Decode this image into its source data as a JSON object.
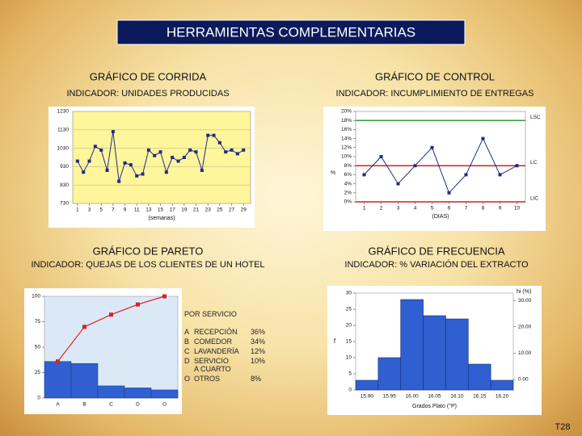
{
  "title": "HERRAMIENTAS COMPLEMENTARIAS",
  "slide_number": "T28",
  "chart_data": [
    {
      "type": "line",
      "title": "GRÁFICO DE CORRIDA",
      "subtitle": "INDICADOR: UNIDADES PRODUCIDAS",
      "x_label": "(semanas)",
      "x": [
        1,
        2,
        3,
        4,
        5,
        6,
        7,
        8,
        9,
        10,
        11,
        12,
        13,
        14,
        15,
        16,
        17,
        18,
        19,
        20,
        21,
        22,
        23,
        24,
        25,
        26,
        27,
        28,
        29
      ],
      "values": [
        960,
        900,
        960,
        1040,
        1020,
        910,
        1120,
        850,
        950,
        940,
        880,
        890,
        1020,
        990,
        1010,
        900,
        980,
        960,
        980,
        1020,
        1010,
        910,
        1100,
        1100,
        1060,
        1010,
        1020,
        1000,
        1020
      ],
      "xlim": [
        0.2,
        30.2
      ],
      "xticks": [
        1,
        3,
        5,
        7,
        9,
        11,
        13,
        15,
        17,
        19,
        21,
        23,
        25,
        27,
        29
      ],
      "ylim": [
        730,
        1230
      ],
      "yticks": [
        730,
        830,
        930,
        1030,
        1130,
        1230
      ],
      "color": "#1c2c8c",
      "plot_color": "#fff59a",
      "grid": true
    },
    {
      "type": "line",
      "title": "GRÁFICO DE CONTROL",
      "subtitle": "INDICADOR: INCUMPLIMIENTO DE ENTREGAS",
      "x_label": "(DIAS)",
      "y_label": "%",
      "x": [
        1,
        2,
        3,
        4,
        5,
        6,
        7,
        8,
        9,
        10
      ],
      "values": [
        6,
        10,
        4,
        8,
        12,
        2,
        6,
        14,
        6,
        8
      ],
      "xlim": [
        0.5,
        10.5
      ],
      "xticks": [
        1,
        2,
        3,
        4,
        5,
        6,
        7,
        8,
        9,
        10
      ],
      "ylim": [
        0,
        20
      ],
      "yticks": [
        {
          "value": 0,
          "label": "0%"
        },
        {
          "value": 2,
          "label": "2%"
        },
        {
          "value": 4,
          "label": "4%"
        },
        {
          "value": 6,
          "label": "6%"
        },
        {
          "value": 8,
          "label": "8%"
        },
        {
          "value": 10,
          "label": "10%"
        },
        {
          "value": 12,
          "label": "12%"
        },
        {
          "value": 14,
          "label": "14%"
        },
        {
          "value": 16,
          "label": "16%"
        },
        {
          "value": 18,
          "label": "18%"
        },
        {
          "value": 20,
          "label": "20%"
        }
      ],
      "color": "#1c2c8c",
      "plot_color": "#ffffff",
      "grid": false,
      "control_lines": [
        {
          "label": "LSC",
          "value": 18,
          "color": "#2e9e3a"
        },
        {
          "label": "LC",
          "value": 8,
          "color": "#d42020"
        },
        {
          "label": "LIC",
          "value": 0,
          "color": "#d42020"
        }
      ]
    },
    {
      "type": "pareto",
      "title": "GRÁFICO DE PARETO",
      "subtitle": "INDICADOR: QUEJAS DE LOS CLIENTES DE UN HOTEL",
      "categories": [
        "A",
        "B",
        "C",
        "D",
        "O"
      ],
      "values": [
        36,
        34,
        12,
        10,
        8
      ],
      "cumulative": [
        36,
        70,
        82,
        92,
        100
      ],
      "color": "#2f5fd0",
      "line_color": "#e02020",
      "plot_color": "#dbe9f7",
      "ylim": [
        0,
        100
      ],
      "yticks": [
        0,
        25,
        50,
        75,
        100
      ],
      "legend_title": "POR SERVICIO",
      "legend_rows": [
        {
          "key": "A",
          "name": "RECEPCIÓN",
          "share": "36%"
        },
        {
          "key": "B",
          "name": "COMEDOR",
          "share": "34%"
        },
        {
          "key": "C",
          "name": "LAVANDERÍA",
          "share": "12%"
        },
        {
          "key": "D",
          "name": "SERVICIO\nA CUARTO",
          "share": "10%"
        },
        {
          "key": "O",
          "name": "OTROS",
          "share": "8%"
        }
      ]
    },
    {
      "type": "bar",
      "title": "GRÁFICO DE FRECUENCIA",
      "subtitle": "INDICADOR: % VARIACIÓN DEL EXTRACTO",
      "x_label": "Grados Plato (°P)",
      "y_label": "f",
      "y2_label": "hi (%)",
      "categories": [
        "15.90",
        "15.95",
        "16.00",
        "16.05",
        "16.10",
        "16.15",
        "16.20"
      ],
      "values": [
        3,
        10,
        28,
        23,
        22,
        8,
        3
      ],
      "color": "#2f5fd0",
      "plot_color": "#ffffff",
      "ylim": [
        0,
        30
      ],
      "yticks": [
        0,
        5,
        10,
        15,
        20,
        25,
        30
      ],
      "y2lim": [
        -4,
        32.8
      ],
      "y2ticks": [
        {
          "value": 0,
          "label": "0.00"
        },
        {
          "value": 10,
          "label": "10.00"
        },
        {
          "value": 20,
          "label": "20.00"
        },
        {
          "value": 30,
          "label": "30.00"
        }
      ]
    }
  ]
}
